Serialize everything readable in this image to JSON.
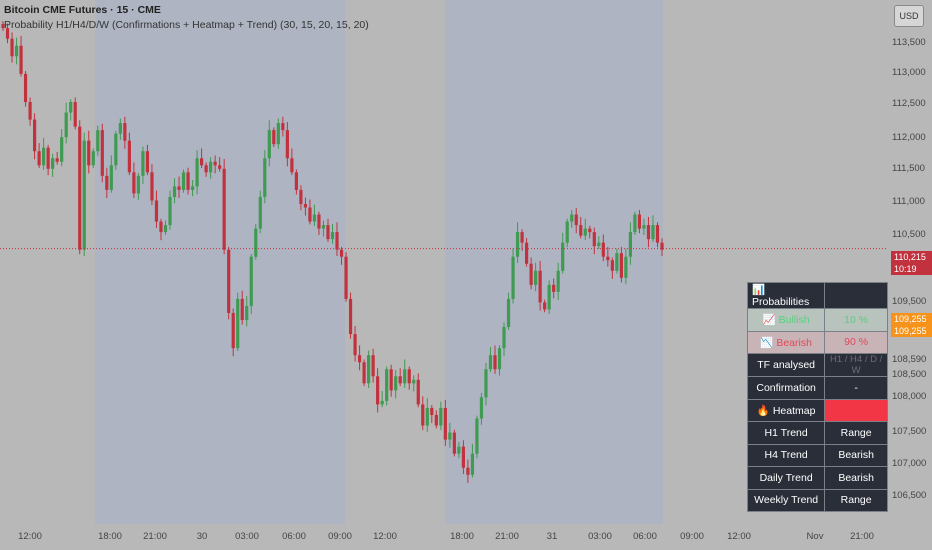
{
  "header": {
    "title": "Bitcoin CME Futures · 15 · CME",
    "indicator": "Probability H1/H4/D/W (Confirmations + Heatmap + Trend) (30, 15, 20, 15, 20)"
  },
  "price_axis": {
    "currency": "USD",
    "ticks": [
      "113,500",
      "113,000",
      "112,500",
      "112,000",
      "111,500",
      "111,000",
      "110,500",
      "109,500",
      "108,590",
      "108,500",
      "108,000",
      "107,500",
      "107,000",
      "106,500"
    ],
    "current_price": "110,215",
    "countdown": "10:19",
    "label_a": "109,255",
    "label_b": "109,255"
  },
  "time_axis": {
    "ticks": [
      "12:00",
      "18:00",
      "21:00",
      "30",
      "03:00",
      "06:00",
      "09:00",
      "12:00",
      "18:00",
      "21:00",
      "31",
      "03:00",
      "06:00",
      "09:00",
      "12:00",
      "Nov",
      "21:00"
    ]
  },
  "colors": {
    "bull": "#3f9a52",
    "bear": "#c2323e",
    "panel": "#2a2e39",
    "heatmap": "#f23645"
  },
  "table": {
    "header": {
      "icon": "📊",
      "label": "Probabilities"
    },
    "bullish": {
      "icon": "📈",
      "label": "Bullish",
      "value": "10 %"
    },
    "bearish": {
      "icon": "📉",
      "label": "Bearish",
      "value": "90 %"
    },
    "tf": {
      "label": "TF analysed",
      "value": "H1 / H4 / D / W"
    },
    "confirmation": {
      "label": "Confirmation",
      "value": "-"
    },
    "heatmap": {
      "icon": "🔥",
      "label": "Heatmap"
    },
    "trends": [
      {
        "label": "H1 Trend",
        "value": "Range"
      },
      {
        "label": "H4 Trend",
        "value": "Bearish"
      },
      {
        "label": "Daily Trend",
        "value": "Bearish"
      },
      {
        "label": "Weekly Trend",
        "value": "Range"
      }
    ]
  },
  "chart_data": {
    "type": "candlestick",
    "y_range": [
      106300,
      113750
    ],
    "current_price": 110215,
    "closes": [
      113350,
      113200,
      112950,
      113100,
      112700,
      112300,
      112050,
      111600,
      111400,
      111650,
      111350,
      111500,
      111450,
      111800,
      112150,
      112300,
      111950,
      110200,
      111750,
      111400,
      111600,
      111900,
      111250,
      111050,
      111400,
      111850,
      112000,
      111750,
      111300,
      111000,
      111250,
      111600,
      111300,
      110900,
      110600,
      110450,
      110550,
      110950,
      111100,
      111050,
      111300,
      111050,
      111100,
      111500,
      111400,
      111300,
      111450,
      111400,
      111350,
      110200,
      109300,
      108800,
      109500,
      109200,
      109400,
      110100,
      110500,
      110950,
      111500,
      111900,
      111700,
      112000,
      111900,
      111500,
      111300,
      111050,
      110850,
      110800,
      110600,
      110700,
      110500,
      110550,
      110350,
      110450,
      110200,
      110100,
      109500,
      109000,
      108700,
      108600,
      108300,
      108700,
      108400,
      108000,
      108050,
      108500,
      108200,
      108400,
      108300,
      108500,
      108300,
      108350,
      108000,
      107700,
      107950,
      107850,
      107700,
      107950,
      107500,
      107600,
      107300,
      107400,
      107100,
      107000,
      107300,
      107800,
      108100,
      108500,
      108700,
      108500,
      108800,
      109100,
      109500,
      110100,
      110450,
      110300,
      110000,
      109700,
      109900,
      109450,
      109350,
      109700,
      109600,
      109900,
      110300,
      110600,
      110700,
      110550,
      110400,
      110500,
      110450,
      110250,
      110300,
      110100,
      110050,
      109900,
      110150,
      109800,
      110100,
      110450,
      110700,
      110500,
      110550,
      110350,
      110550,
      110300,
      110200
    ]
  }
}
